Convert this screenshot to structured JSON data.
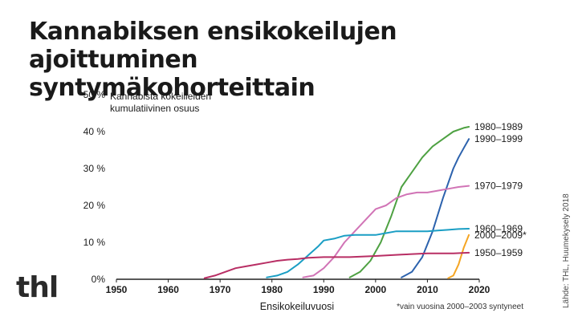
{
  "header": {
    "title_line1": "Kannabiksen ensikokeilujen ajoittuminen",
    "title_line2": "syntymäkohorteittain"
  },
  "logo_text": "thl",
  "source": "Lähde: THL, Huumekysely 2018",
  "footnote": "*vain vuosina 2000–2003 syntyneet",
  "colors": {
    "1980–1989": "#4ea142",
    "1990–1999": "#2c62ad",
    "1970–1979": "#d174b6",
    "1960–1969": "#1a9ec4",
    "2000–2009*": "#f5a523",
    "1950–1959": "#b82e64"
  },
  "chart_data": {
    "type": "line",
    "title": "Kannabiksen ensikokeilujen ajoittuminen syntymäkohorteittain",
    "ylabel_line1": "Kannabista kokeilleiden",
    "ylabel_line2": "kumulatiivinen osuus",
    "xlabel": "Ensikokeiluvuosi",
    "xlim": [
      1950,
      2020
    ],
    "ylim": [
      0,
      50
    ],
    "xticks": [
      "1950",
      "1960",
      "1970",
      "1980",
      "1990",
      "2000",
      "2010",
      "2020"
    ],
    "yticks": [
      "0%",
      "10 %",
      "20 %",
      "30 %",
      "40 %",
      "50 %"
    ],
    "grid": false,
    "legend": "labels at line ends (right)",
    "series": [
      {
        "name": "1980–1989",
        "x": [
          1995,
          1997,
          1999,
          2001,
          2003,
          2005,
          2007,
          2009,
          2011,
          2013,
          2015,
          2017,
          2018
        ],
        "y": [
          0.5,
          2,
          5,
          10,
          17,
          25,
          29,
          33,
          36,
          38,
          40,
          41,
          41.3
        ]
      },
      {
        "name": "1990–1999",
        "x": [
          2005,
          2007,
          2009,
          2011,
          2013,
          2015,
          2016,
          2017,
          2018
        ],
        "y": [
          0.5,
          2,
          6,
          13,
          22,
          30,
          33,
          35.5,
          38
        ]
      },
      {
        "name": "1970–1979",
        "x": [
          1986,
          1988,
          1990,
          1992,
          1994,
          1996,
          1998,
          2000,
          2002,
          2004,
          2006,
          2008,
          2010,
          2012,
          2014,
          2016,
          2018
        ],
        "y": [
          0.5,
          1,
          3,
          6,
          10,
          13,
          16,
          19,
          20,
          22,
          23,
          23.5,
          23.5,
          24,
          24.5,
          25,
          25.3
        ]
      },
      {
        "name": "1960–1969",
        "x": [
          1979,
          1981,
          1983,
          1985,
          1987,
          1989,
          1990,
          1992,
          1994,
          1996,
          1998,
          2000,
          2002,
          2004,
          2006,
          2008,
          2010,
          2012,
          2014,
          2016,
          2018
        ],
        "y": [
          0.5,
          1,
          2,
          4,
          6.5,
          9,
          10.5,
          11,
          11.8,
          12,
          12,
          12,
          12.5,
          13,
          13,
          13,
          13,
          13.2,
          13.4,
          13.6,
          13.7
        ]
      },
      {
        "name": "2000–2009*",
        "x": [
          2014,
          2015,
          2016,
          2017,
          2018
        ],
        "y": [
          0.3,
          1,
          4,
          8.5,
          12
        ]
      },
      {
        "name": "1950–1959",
        "x": [
          1967,
          1969,
          1971,
          1973,
          1975,
          1977,
          1979,
          1981,
          1983,
          1985,
          1987,
          1990,
          1995,
          2000,
          2005,
          2010,
          2015,
          2018
        ],
        "y": [
          0.3,
          1,
          2,
          3,
          3.5,
          4,
          4.5,
          5,
          5.3,
          5.5,
          5.8,
          6,
          6,
          6.3,
          6.7,
          7,
          7,
          7.2
        ]
      }
    ]
  }
}
